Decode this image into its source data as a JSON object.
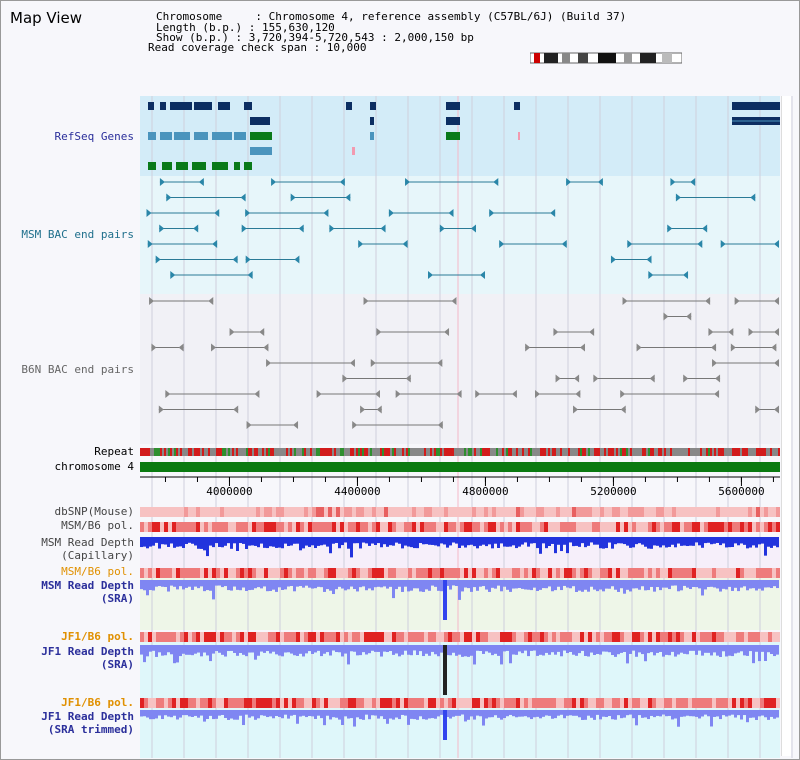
{
  "page": {
    "title": "Map View"
  },
  "info": {
    "chromosome_label": "Chromosome     : Chromosome 4, reference assembly (C57BL/6J) (Build 37)",
    "length_label": "Length (b.p.) : 155,630,120",
    "show_label": "Show (b.p.) : 3,720,394-5,720,543 : 2,000,150 bp",
    "coverage_label": "Read coverage check span : 10,000"
  },
  "tracks": {
    "refseq": "RefSeq Genes",
    "msm_bac": "MSM BAC end pairs",
    "b6n_bac": "B6N BAC end pairs",
    "repeat": "Repeat",
    "chromosome": "chromosome 4",
    "dbsnp": "dbSNP(Mouse)",
    "msm_b6_pol_1": "MSM/B6 pol.",
    "msm_depth_cap_1": "MSM Read Depth",
    "msm_depth_cap_2": "(Capillary)",
    "msm_b6_pol_2": "MSM/B6 pol.",
    "msm_depth_sra_1": "MSM Read Depth",
    "msm_depth_sra_2": "(SRA)",
    "jf1_pol_1": "JF1/B6 pol.",
    "jf1_depth_sra_1": "JF1 Read Depth",
    "jf1_depth_sra_2": "(SRA)",
    "jf1_pol_2": "JF1/B6 pol.",
    "jf1_depth_trim_1": "JF1 Read Depth",
    "jf1_depth_trim_2": "(SRA trimmed)"
  },
  "axis": {
    "ticks": [
      "4000000",
      "4400000",
      "4800000",
      "5200000",
      "5600000"
    ],
    "range_start": 3720394,
    "range_end": 5720543
  },
  "colors": {
    "refseq_bg": "#d3ecf8",
    "msm_bg": "#e7f6fa",
    "b6n_bg": "#f1f1f6",
    "label_navy": "#2b2f9b",
    "label_teal": "#1f6f8c",
    "label_orange": "#e09000",
    "gene_dark": "#0c2e62",
    "gene_teal": "#4a94bd",
    "gene_green": "#0a7a1a",
    "chromosome_green": "#0a7a10",
    "depth_blue": "#2233dd",
    "depth_light": "#7f86f2"
  }
}
